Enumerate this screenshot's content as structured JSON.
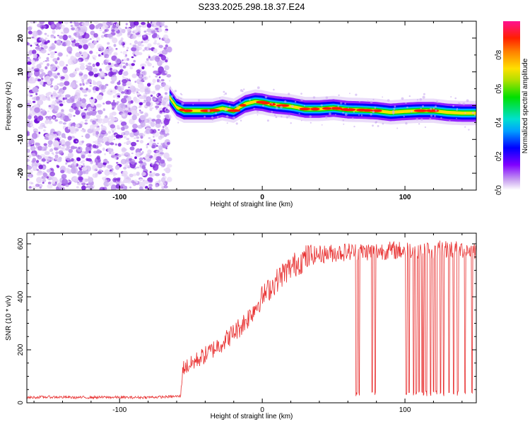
{
  "title": "S233.2025.298.18.37.E24",
  "chart_data": [
    {
      "type": "heatmap",
      "xlabel": "Height of straight line (km)",
      "ylabel": "Frequency (Hz)",
      "xlim": [
        -165,
        150
      ],
      "ylim": [
        -25,
        25
      ],
      "xticks": [
        -100,
        0,
        100
      ],
      "yticks": [
        -20,
        -10,
        0,
        10,
        20
      ],
      "noise_region": [
        -165,
        -65
      ],
      "ridge": {
        "x": [
          -65,
          -60,
          -55,
          -45,
          -35,
          -28,
          -20,
          -12,
          -5,
          0,
          5,
          10,
          20,
          30,
          40,
          50,
          60,
          70,
          80,
          90,
          100,
          110,
          120,
          130,
          140,
          150
        ],
        "y": [
          2.5,
          -0.5,
          -1.5,
          -1.5,
          -1.5,
          -0.8,
          -1.5,
          0.5,
          1.2,
          1.0,
          0.5,
          0.2,
          -0.2,
          -1.0,
          -1.0,
          -0.7,
          -1.2,
          -1.3,
          -1.5,
          -2.0,
          -1.7,
          -1.5,
          -1.5,
          -2.0,
          -2.2,
          -2.2
        ]
      },
      "colorbar": {
        "label": "Normalized spectral amplitude",
        "ticks": [
          "0.0",
          "0.2",
          "0.4",
          "0.6",
          "0.8"
        ],
        "range": [
          0,
          1
        ]
      }
    },
    {
      "type": "line",
      "xlabel": "Height of straight line (km)",
      "ylabel": "SNR (10 * v/v)",
      "xlim": [
        -165,
        150
      ],
      "ylim": [
        0,
        640
      ],
      "xticks": [
        -100,
        0,
        100
      ],
      "yticks": [
        0,
        200,
        400,
        600
      ],
      "color": "#e83030",
      "series": [
        {
          "x": [
            -165,
            -150,
            -130,
            -110,
            -90,
            -70,
            -57,
            -56,
            -50,
            -45,
            -40,
            -35,
            -30,
            -25,
            -20,
            -15,
            -10,
            -5,
            0,
            5,
            10,
            15,
            20,
            25,
            30,
            35,
            40,
            50,
            60,
            70,
            80,
            90,
            100,
            110,
            120,
            130,
            140,
            150
          ],
          "y": [
            20,
            22,
            20,
            21,
            20,
            22,
            25,
            130,
            145,
            165,
            180,
            200,
            220,
            240,
            265,
            290,
            320,
            360,
            400,
            430,
            460,
            490,
            510,
            530,
            545,
            555,
            560,
            565,
            570,
            570,
            572,
            575,
            575,
            580,
            575,
            580,
            578,
            575
          ]
        }
      ],
      "dropouts_x": [
        66,
        68,
        77,
        79,
        101,
        103,
        106,
        108,
        110,
        112,
        113,
        115,
        118,
        120,
        122,
        125,
        127,
        131,
        134,
        137,
        142,
        147
      ]
    }
  ]
}
